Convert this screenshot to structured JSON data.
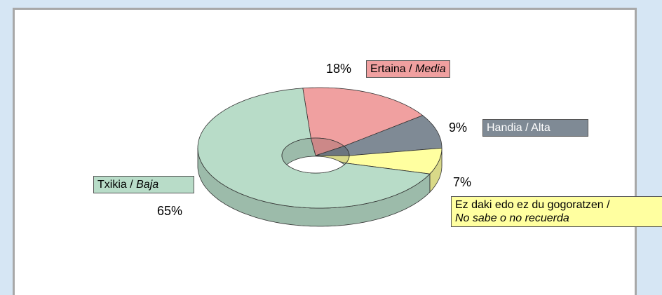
{
  "chart_data": {
    "type": "pie3d",
    "categories": [
      "Ertaina / Media",
      "Handia / Alta",
      "Ez daki edo ez du gogoratzen / No sabe o no recuerda",
      "Txikia / Baja"
    ],
    "values": [
      18,
      9,
      7,
      65
    ],
    "value_labels": [
      "18%",
      "9%",
      "7%",
      "65%"
    ],
    "colors": [
      "#f0a0a0",
      "#7f8a95",
      "#ffffa0",
      "#b8dcc8"
    ],
    "italic_second_part": [
      true,
      false,
      true,
      true
    ]
  }
}
